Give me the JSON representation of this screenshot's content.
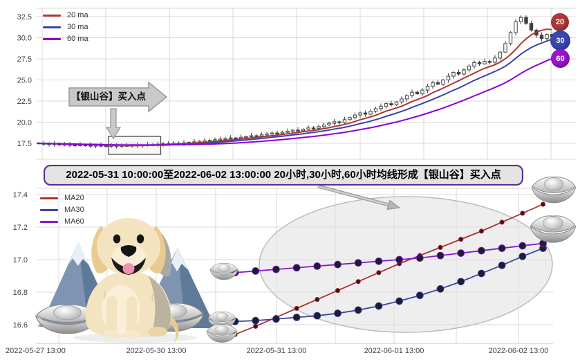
{
  "annotations": {
    "callout_label": "【银山谷】买入点",
    "banner": "2022-05-31 10:00:00至2022-06-02 13:00:00 20小时,30小时,60小时均线形成【银山谷】买入点"
  },
  "badges": [
    {
      "label": "20",
      "color": "#ac3a3a"
    },
    {
      "label": "30",
      "color": "#3947b4"
    },
    {
      "label": "60",
      "color": "#9a14cf"
    }
  ],
  "decor": {
    "mascot": "golden-retriever-puppy",
    "scene_icons": [
      "mountain-icon",
      "silver-ingot-icon",
      "cursor-icon"
    ]
  },
  "chart_data": [
    {
      "type": "candlestick",
      "legend": [
        {
          "label": "20 ma",
          "color": "#b03535"
        },
        {
          "label": "30 ma",
          "color": "#3b44a6"
        },
        {
          "label": "60 ma",
          "color": "#8b00d6"
        }
      ],
      "ma_periods": [
        20,
        30,
        60
      ],
      "y_tick_labels": [
        "32.5",
        "30.0",
        "27.5",
        "25.0",
        "22.5",
        "20.0",
        "17.5"
      ],
      "ylim": [
        15.6,
        33.5
      ],
      "grid": true,
      "closes": [
        17.5,
        17.45,
        17.47,
        17.4,
        17.36,
        17.38,
        17.32,
        17.3,
        17.33,
        17.28,
        17.25,
        17.28,
        17.22,
        17.2,
        17.24,
        17.21,
        17.25,
        17.23,
        17.27,
        17.3,
        17.28,
        17.33,
        17.36,
        17.4,
        17.44,
        17.48,
        17.52,
        17.5,
        17.56,
        17.62,
        17.68,
        17.74,
        17.8,
        17.86,
        17.92,
        18.0,
        18.06,
        18.14,
        18.1,
        18.22,
        18.3,
        18.4,
        18.36,
        18.5,
        18.6,
        18.72,
        18.66,
        18.8,
        18.94,
        19.06,
        19.0,
        19.18,
        19.32,
        19.28,
        19.48,
        19.66,
        19.86,
        20.05,
        19.95,
        20.3,
        20.55,
        20.85,
        21.1,
        20.95,
        21.3,
        21.6,
        21.9,
        22.2,
        22.05,
        22.4,
        22.75,
        23.15,
        23.55,
        23.35,
        23.8,
        24.25,
        24.7,
        24.5,
        25.0,
        25.45,
        25.9,
        25.7,
        26.2,
        26.65,
        27.05,
        26.9,
        27.2,
        27.1,
        27.6,
        28.3,
        29.3,
        30.6,
        31.9,
        32.4,
        31.7,
        30.9,
        30.3,
        29.9,
        30.4,
        30.1
      ],
      "buy_box_candle_range": [
        14,
        23
      ]
    },
    {
      "type": "line",
      "legend": [
        {
          "label": "MA20",
          "color": "#b03030"
        },
        {
          "label": "MA30",
          "color": "#3b44a6"
        },
        {
          "label": "MA60",
          "color": "#8816d2"
        }
      ],
      "y_tick_labels": [
        "17.4",
        "17.2",
        "17.0",
        "16.8",
        "16.6"
      ],
      "ylim": [
        16.49,
        17.44
      ],
      "x_tick_labels": [
        "2022-05-27 13:00",
        "2022-05-30 13:00",
        "2022-05-31 13:00",
        "2022-06-01 13:00",
        "2022-06-02 13:00"
      ],
      "grid": true,
      "series": [
        {
          "name": "MA20",
          "color": "#b03030",
          "marker_r": 3.2,
          "dot_color": "#451022",
          "values": [
            16.54,
            16.59,
            16.645,
            16.7,
            16.755,
            16.81,
            16.865,
            16.92,
            16.975,
            17.025,
            17.075,
            17.125,
            17.175,
            17.23,
            17.285,
            17.34
          ]
        },
        {
          "name": "MA30",
          "color": "#3b44a6",
          "marker_r": 5,
          "dot_color": "#1d1d35",
          "values": [
            16.62,
            16.625,
            16.635,
            16.645,
            16.655,
            16.67,
            16.69,
            16.715,
            16.745,
            16.78,
            16.82,
            16.865,
            16.915,
            16.965,
            17.02,
            17.07
          ]
        },
        {
          "name": "MA60",
          "color": "#8816d2",
          "marker_r": 5,
          "dot_color": "#1d1d35",
          "values": [
            16.92,
            16.93,
            16.94,
            16.95,
            16.96,
            16.97,
            16.98,
            16.99,
            17.0,
            17.01,
            17.025,
            17.04,
            17.055,
            17.07,
            17.085,
            17.1
          ]
        }
      ]
    }
  ]
}
